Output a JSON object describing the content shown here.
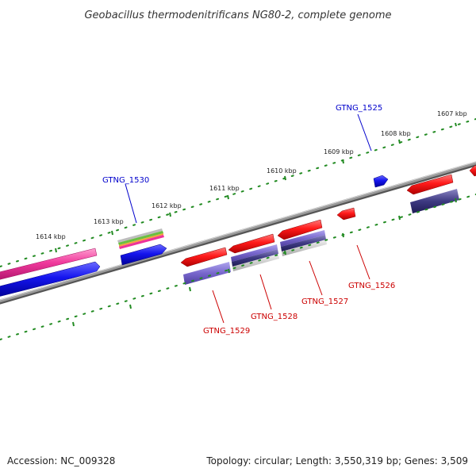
{
  "title": "Geobacillus thermodenitrificans NG80-2, complete genome",
  "footer": {
    "accession": "Accession: NC_009328",
    "summary": "Topology: circular; Length: 3,550,319 bp; Genes: 3,509"
  },
  "kbp_labels": [
    "1607 kbp",
    "1608 kbp",
    "1609 kbp",
    "1610 kbp",
    "1611 kbp",
    "1612 kbp",
    "1613 kbp",
    "1614 kbp"
  ],
  "genes": [
    {
      "name": "GTNG_1525",
      "strand": "forward"
    },
    {
      "name": "GTNG_1526",
      "strand": "reverse"
    },
    {
      "name": "GTNG_1527",
      "strand": "reverse"
    },
    {
      "name": "GTNG_1528",
      "strand": "reverse"
    },
    {
      "name": "GTNG_1529",
      "strand": "reverse"
    },
    {
      "name": "GTNG_1530",
      "strand": "forward"
    }
  ],
  "colors": {
    "forward_label": "#0000cc",
    "reverse_label": "#cc0000",
    "forward_gene": "#1010ee",
    "reverse_gene": "#ee1010",
    "pink_gene": "#ee3399",
    "blue_band": "#2222dd",
    "purple_band": "#7766cc",
    "navy_band": "#333377",
    "backbone": "#888888",
    "ticks": "#228b22"
  }
}
